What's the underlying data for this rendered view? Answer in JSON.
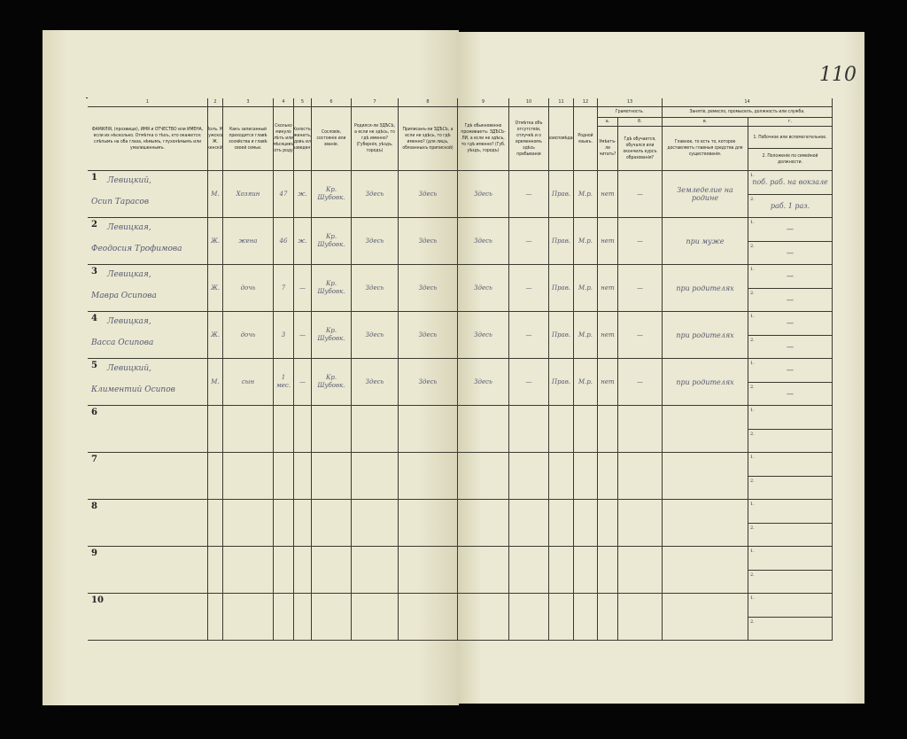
{
  "page_number": "110",
  "left_columns": [
    {
      "num": "1",
      "header": "ФАМИЛІЯ, (прозвище), ИМЯ и ОТЧЕСТВО или ИМЕНА, если их нѣсколько. Отмѣтка о тѣхъ, кто окажется: слѣпымъ на оба глаза, нѣмымъ, глухонѣмымъ или умалишеннымъ."
    },
    {
      "num": "2",
      "header": "Полъ. М. мужской. Ж. женскій."
    },
    {
      "num": "3",
      "header": "Какъ записанный приходится главѣ хозяйства и главѣ своей семьи."
    },
    {
      "num": "4",
      "header": "Сколько минуло лѣтъ или мѣсяцевъ отъ роду"
    },
    {
      "num": "5",
      "header": "Холостъ, женатъ, вдовъ или разведенъ."
    },
    {
      "num": "6",
      "header": "Сословіе, состояніе или званіе."
    },
    {
      "num": "7",
      "header": "Родился-ли ЗДѢСЬ, а если не здѣсь, то гдѣ именно? (Губернія, уѣздъ, городъ)"
    },
    {
      "num": "8",
      "header": "Приписанъ-ли ЗДѢСЬ, а если не здѣсь, то гдѣ именно? (для лицъ, обязанныхъ припиской)"
    }
  ],
  "right_columns": [
    {
      "num": "9",
      "header": "Гдѣ обыкновенно проживаетъ: ЗДѢСЬ-ЛИ, а если не здѣсь, то гдѣ именно? (Губ. уѣздъ, городъ)"
    },
    {
      "num": "10",
      "header": "Отмѣтка объ отсутствіи, отлучкѣ и о временномъ здѣсь пребываніи"
    },
    {
      "num": "11",
      "header": "Вѣроисповѣданіе."
    },
    {
      "num": "12",
      "header": "Родной языкъ."
    },
    {
      "num": "13а",
      "header": "Умѣетъ-ли читать?"
    },
    {
      "num": "13б",
      "header": "Гдѣ обучается, обучался или окончилъ курсъ образованія?"
    },
    {
      "num": "14в",
      "header": "Главное, то есть то, которое доставляетъ главныя средства для существованія."
    },
    {
      "num": "14г",
      "header": "1. Побочное или вспомогательное. | 2. Положеніе по семейной должности."
    }
  ],
  "group_headers": {
    "literacy": "Грамотность.",
    "literacy_num": "13",
    "occupation": "Занятіе, ремесло, промыселъ, должность или служба.",
    "occupation_num": "14",
    "sub_a": "а.",
    "sub_b": "б.",
    "sub_v": "в.",
    "sub_g": "г.",
    "sub1": "1.",
    "sub2": "2."
  },
  "rows": [
    {
      "n": "1",
      "surname": "Левицкий,",
      "given": "Осип Тарасов",
      "sex": "М.",
      "relation": "Хозяин",
      "age": "47",
      "marital": "ж.",
      "estate": "Кр. Шубовк.",
      "born": "Здесь",
      "registered": "Здесь",
      "resides": "Здесь",
      "absence": "—",
      "religion": "Прав.",
      "language": "М.р.",
      "literate": "нет",
      "education": "—",
      "occupation": "Земледелие на родине",
      "side1": "поб. раб. на вокзале",
      "side2": "раб. 1 раз."
    },
    {
      "n": "2",
      "surname": "Левицкая,",
      "given": "Феодосия Трофимова",
      "sex": "Ж.",
      "relation": "жена",
      "age": "46",
      "marital": "ж.",
      "estate": "Кр. Шубовк.",
      "born": "Здесь",
      "registered": "Здесь",
      "resides": "Здесь",
      "absence": "—",
      "religion": "Прав.",
      "language": "М.р.",
      "literate": "нет",
      "education": "—",
      "occupation": "при муже",
      "side1": "—",
      "side2": "—"
    },
    {
      "n": "3",
      "surname": "Левицкая,",
      "given": "Мавра Осипова",
      "sex": "Ж.",
      "relation": "дочь",
      "age": "7",
      "marital": "—",
      "estate": "Кр. Шубовк.",
      "born": "Здесь",
      "registered": "Здесь",
      "resides": "Здесь",
      "absence": "—",
      "religion": "Прав.",
      "language": "М.р.",
      "literate": "нет",
      "education": "—",
      "occupation": "при родителях",
      "side1": "—",
      "side2": "—"
    },
    {
      "n": "4",
      "surname": "Левицкая,",
      "given": "Васса Осипова",
      "sex": "Ж.",
      "relation": "дочь",
      "age": "3",
      "marital": "—",
      "estate": "Кр. Шубовк.",
      "born": "Здесь",
      "registered": "Здесь",
      "resides": "Здесь",
      "absence": "—",
      "religion": "Прав.",
      "language": "М.р.",
      "literate": "нет",
      "education": "—",
      "occupation": "при родителях",
      "side1": "—",
      "side2": "—"
    },
    {
      "n": "5",
      "surname": "Левицкий,",
      "given": "Климентий Осипов",
      "sex": "М.",
      "relation": "сын",
      "age": "1 мес.",
      "marital": "—",
      "estate": "Кр. Шубовк.",
      "born": "Здесь",
      "registered": "Здесь",
      "resides": "Здесь",
      "absence": "—",
      "religion": "Прав.",
      "language": "М.р.",
      "literate": "нет",
      "education": "—",
      "occupation": "при родителях",
      "side1": "—",
      "side2": "—"
    },
    {
      "n": "6"
    },
    {
      "n": "7"
    },
    {
      "n": "8"
    },
    {
      "n": "9"
    },
    {
      "n": "10"
    }
  ]
}
